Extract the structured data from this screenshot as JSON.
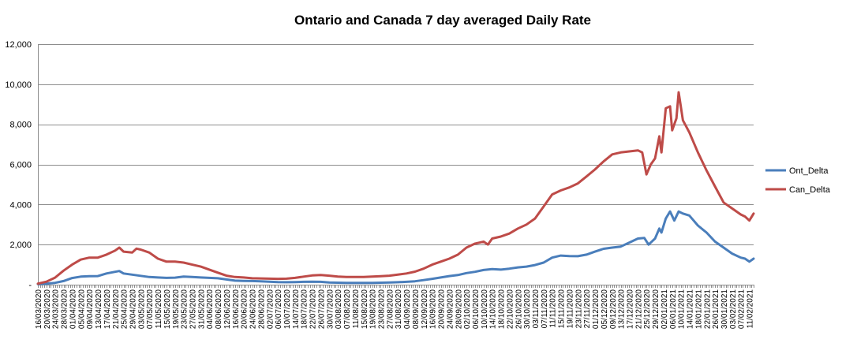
{
  "chart_data": {
    "type": "line",
    "title": "Ontario  and  Canada  7 day  averaged  Daily  Rate",
    "xlabel": "",
    "ylabel": "",
    "ylim": [
      0,
      12000
    ],
    "yticks": [
      0,
      2000,
      4000,
      6000,
      8000,
      10000,
      12000
    ],
    "ytick_labels": [
      "-",
      "2,000",
      "4,000",
      "6,000",
      "8,000",
      "10,000",
      "12,000"
    ],
    "grid": "horizontal",
    "legend_position": "right",
    "x_start": "16/03/2020",
    "x_end": "13/02/2021",
    "x_tick_labels": [
      "16/03/2020",
      "20/03/2020",
      "24/03/2020",
      "28/03/2020",
      "01/04/2020",
      "05/04/2020",
      "09/04/2020",
      "13/04/2020",
      "17/04/2020",
      "21/04/2020",
      "25/04/2020",
      "29/04/2020",
      "03/05/2020",
      "07/05/2020",
      "11/05/2020",
      "15/05/2020",
      "19/05/2020",
      "23/05/2020",
      "27/05/2020",
      "31/05/2020",
      "04/06/2020",
      "08/06/2020",
      "12/06/2020",
      "16/06/2020",
      "20/06/2020",
      "24/06/2020",
      "28/06/2020",
      "02/07/2020",
      "06/07/2020",
      "10/07/2020",
      "14/07/2020",
      "18/07/2020",
      "22/07/2020",
      "26/07/2020",
      "30/07/2020",
      "03/08/2020",
      "07/08/2020",
      "11/08/2020",
      "15/08/2020",
      "19/08/2020",
      "23/08/2020",
      "27/08/2020",
      "31/08/2020",
      "04/09/2020",
      "08/09/2020",
      "12/09/2020",
      "16/09/2020",
      "20/09/2020",
      "24/09/2020",
      "28/09/2020",
      "02/10/2020",
      "06/10/2020",
      "10/10/2020",
      "14/10/2020",
      "18/10/2020",
      "22/10/2020",
      "26/10/2020",
      "30/10/2020",
      "03/11/2020",
      "07/11/2020",
      "11/11/2020",
      "15/11/2020",
      "19/11/2020",
      "23/11/2020",
      "27/11/2020",
      "01/12/2020",
      "05/12/2020",
      "09/12/2020",
      "13/12/2020",
      "17/12/2020",
      "21/12/2020",
      "25/12/2020",
      "29/12/2020",
      "02/01/2021",
      "06/01/2021",
      "10/01/2021",
      "14/01/2021",
      "18/01/2021",
      "22/01/2021",
      "26/01/2021",
      "30/01/2021",
      "03/02/2021",
      "07/02/2021",
      "11/02/2021"
    ],
    "series": [
      {
        "name": "Ont_Delta",
        "color": "#4a7ebb",
        "points": [
          [
            "16/03/2020",
            30
          ],
          [
            "20/03/2020",
            50
          ],
          [
            "24/03/2020",
            90
          ],
          [
            "28/03/2020",
            180
          ],
          [
            "01/04/2020",
            330
          ],
          [
            "05/04/2020",
            400
          ],
          [
            "09/04/2020",
            420
          ],
          [
            "13/04/2020",
            430
          ],
          [
            "17/04/2020",
            560
          ],
          [
            "21/04/2020",
            640
          ],
          [
            "23/04/2020",
            680
          ],
          [
            "25/04/2020",
            560
          ],
          [
            "29/04/2020",
            500
          ],
          [
            "03/05/2020",
            440
          ],
          [
            "07/05/2020",
            380
          ],
          [
            "11/05/2020",
            360
          ],
          [
            "15/05/2020",
            340
          ],
          [
            "19/05/2020",
            350
          ],
          [
            "23/05/2020",
            400
          ],
          [
            "27/05/2020",
            380
          ],
          [
            "31/05/2020",
            360
          ],
          [
            "04/06/2020",
            340
          ],
          [
            "08/06/2020",
            320
          ],
          [
            "12/06/2020",
            260
          ],
          [
            "16/06/2020",
            200
          ],
          [
            "20/06/2020",
            190
          ],
          [
            "24/06/2020",
            180
          ],
          [
            "28/06/2020",
            170
          ],
          [
            "02/07/2020",
            150
          ],
          [
            "06/07/2020",
            130
          ],
          [
            "10/07/2020",
            120
          ],
          [
            "14/07/2020",
            130
          ],
          [
            "18/07/2020",
            140
          ],
          [
            "22/07/2020",
            150
          ],
          [
            "26/07/2020",
            140
          ],
          [
            "30/07/2020",
            110
          ],
          [
            "03/08/2020",
            100
          ],
          [
            "07/08/2020",
            90
          ],
          [
            "11/08/2020",
            90
          ],
          [
            "15/08/2020",
            90
          ],
          [
            "19/08/2020",
            90
          ],
          [
            "23/08/2020",
            100
          ],
          [
            "27/08/2020",
            110
          ],
          [
            "31/08/2020",
            120
          ],
          [
            "04/09/2020",
            140
          ],
          [
            "08/09/2020",
            170
          ],
          [
            "12/09/2020",
            230
          ],
          [
            "16/09/2020",
            290
          ],
          [
            "20/09/2020",
            360
          ],
          [
            "24/09/2020",
            430
          ],
          [
            "28/09/2020",
            480
          ],
          [
            "02/10/2020",
            580
          ],
          [
            "06/10/2020",
            640
          ],
          [
            "10/10/2020",
            730
          ],
          [
            "14/10/2020",
            780
          ],
          [
            "18/10/2020",
            750
          ],
          [
            "22/10/2020",
            800
          ],
          [
            "26/10/2020",
            860
          ],
          [
            "30/10/2020",
            900
          ],
          [
            "03/11/2020",
            980
          ],
          [
            "07/11/2020",
            1100
          ],
          [
            "11/11/2020",
            1350
          ],
          [
            "15/11/2020",
            1450
          ],
          [
            "19/11/2020",
            1430
          ],
          [
            "23/11/2020",
            1420
          ],
          [
            "27/11/2020",
            1500
          ],
          [
            "01/12/2020",
            1650
          ],
          [
            "05/12/2020",
            1790
          ],
          [
            "09/12/2020",
            1850
          ],
          [
            "13/12/2020",
            1900
          ],
          [
            "17/12/2020",
            2100
          ],
          [
            "21/12/2020",
            2300
          ],
          [
            "24/12/2020",
            2330
          ],
          [
            "26/12/2020",
            2000
          ],
          [
            "29/12/2020",
            2300
          ],
          [
            "31/12/2020",
            2800
          ],
          [
            "01/01/2021",
            2600
          ],
          [
            "03/01/2021",
            3300
          ],
          [
            "05/01/2021",
            3650
          ],
          [
            "07/01/2021",
            3200
          ],
          [
            "09/01/2021",
            3650
          ],
          [
            "11/01/2021",
            3550
          ],
          [
            "14/01/2021",
            3450
          ],
          [
            "16/01/2021",
            3200
          ],
          [
            "18/01/2021",
            2950
          ],
          [
            "22/01/2021",
            2600
          ],
          [
            "26/01/2021",
            2150
          ],
          [
            "30/01/2021",
            1850
          ],
          [
            "03/02/2021",
            1550
          ],
          [
            "07/02/2021",
            1350
          ],
          [
            "09/02/2021",
            1300
          ],
          [
            "11/02/2021",
            1150
          ],
          [
            "13/02/2021",
            1300
          ]
        ]
      },
      {
        "name": "Can_Delta",
        "color": "#be4b48",
        "points": [
          [
            "16/03/2020",
            50
          ],
          [
            "20/03/2020",
            150
          ],
          [
            "24/03/2020",
            350
          ],
          [
            "28/03/2020",
            700
          ],
          [
            "01/04/2020",
            1000
          ],
          [
            "05/04/2020",
            1250
          ],
          [
            "09/04/2020",
            1350
          ],
          [
            "13/04/2020",
            1350
          ],
          [
            "17/04/2020",
            1500
          ],
          [
            "21/04/2020",
            1700
          ],
          [
            "23/04/2020",
            1850
          ],
          [
            "25/04/2020",
            1650
          ],
          [
            "29/04/2020",
            1600
          ],
          [
            "01/05/2020",
            1800
          ],
          [
            "03/05/2020",
            1750
          ],
          [
            "07/05/2020",
            1600
          ],
          [
            "11/05/2020",
            1300
          ],
          [
            "15/05/2020",
            1150
          ],
          [
            "19/05/2020",
            1150
          ],
          [
            "23/05/2020",
            1100
          ],
          [
            "27/05/2020",
            1000
          ],
          [
            "31/05/2020",
            900
          ],
          [
            "04/06/2020",
            750
          ],
          [
            "08/06/2020",
            600
          ],
          [
            "12/06/2020",
            450
          ],
          [
            "16/06/2020",
            380
          ],
          [
            "20/06/2020",
            360
          ],
          [
            "24/06/2020",
            320
          ],
          [
            "28/06/2020",
            310
          ],
          [
            "02/07/2020",
            300
          ],
          [
            "06/07/2020",
            290
          ],
          [
            "10/07/2020",
            300
          ],
          [
            "14/07/2020",
            340
          ],
          [
            "18/07/2020",
            400
          ],
          [
            "22/07/2020",
            460
          ],
          [
            "26/07/2020",
            480
          ],
          [
            "30/07/2020",
            450
          ],
          [
            "03/08/2020",
            400
          ],
          [
            "07/08/2020",
            380
          ],
          [
            "11/08/2020",
            380
          ],
          [
            "15/08/2020",
            380
          ],
          [
            "19/08/2020",
            400
          ],
          [
            "23/08/2020",
            420
          ],
          [
            "27/08/2020",
            450
          ],
          [
            "31/08/2020",
            500
          ],
          [
            "04/09/2020",
            560
          ],
          [
            "08/09/2020",
            650
          ],
          [
            "12/09/2020",
            800
          ],
          [
            "16/09/2020",
            1000
          ],
          [
            "20/09/2020",
            1150
          ],
          [
            "24/09/2020",
            1300
          ],
          [
            "28/09/2020",
            1500
          ],
          [
            "02/10/2020",
            1850
          ],
          [
            "06/10/2020",
            2050
          ],
          [
            "10/10/2020",
            2150
          ],
          [
            "12/10/2020",
            2000
          ],
          [
            "14/10/2020",
            2300
          ],
          [
            "18/10/2020",
            2400
          ],
          [
            "22/10/2020",
            2550
          ],
          [
            "26/10/2020",
            2800
          ],
          [
            "30/10/2020",
            3000
          ],
          [
            "03/11/2020",
            3300
          ],
          [
            "07/11/2020",
            3900
          ],
          [
            "11/11/2020",
            4500
          ],
          [
            "15/11/2020",
            4700
          ],
          [
            "19/11/2020",
            4850
          ],
          [
            "23/11/2020",
            5050
          ],
          [
            "27/11/2020",
            5400
          ],
          [
            "01/12/2020",
            5750
          ],
          [
            "05/12/2020",
            6150
          ],
          [
            "09/12/2020",
            6500
          ],
          [
            "13/12/2020",
            6600
          ],
          [
            "17/12/2020",
            6650
          ],
          [
            "21/12/2020",
            6700
          ],
          [
            "23/12/2020",
            6600
          ],
          [
            "25/12/2020",
            5500
          ],
          [
            "27/12/2020",
            6000
          ],
          [
            "29/12/2020",
            6300
          ],
          [
            "31/12/2020",
            7400
          ],
          [
            "01/01/2021",
            6600
          ],
          [
            "03/01/2021",
            8800
          ],
          [
            "05/01/2021",
            8900
          ],
          [
            "06/01/2021",
            7700
          ],
          [
            "08/01/2021",
            8300
          ],
          [
            "09/01/2021",
            9600
          ],
          [
            "11/01/2021",
            8200
          ],
          [
            "14/01/2021",
            7600
          ],
          [
            "18/01/2021",
            6600
          ],
          [
            "22/01/2021",
            5700
          ],
          [
            "26/01/2021",
            4900
          ],
          [
            "30/01/2021",
            4100
          ],
          [
            "03/02/2021",
            3800
          ],
          [
            "07/02/2021",
            3500
          ],
          [
            "09/02/2021",
            3400
          ],
          [
            "11/02/2021",
            3200
          ],
          [
            "13/02/2021",
            3550
          ]
        ]
      }
    ]
  }
}
